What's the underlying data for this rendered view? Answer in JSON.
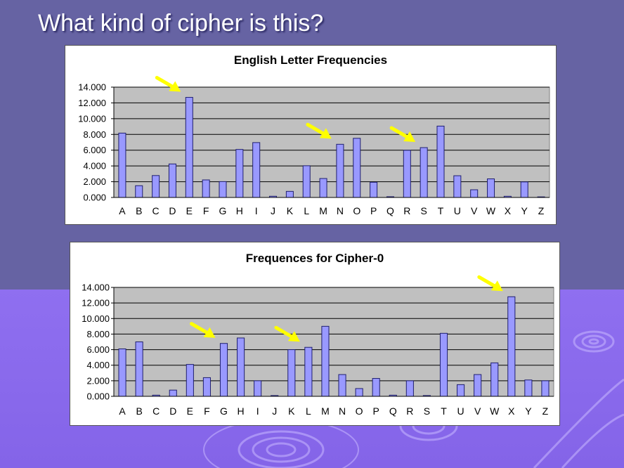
{
  "slide": {
    "title": "What kind of cipher is this?"
  },
  "colors": {
    "background_top": "#6663a3",
    "background_bottom": "#8f6ff0",
    "plot_area": "#c0c0c0",
    "bar_fill": "#9999ff",
    "bar_stroke": "#1f1f6e",
    "arrow": "#ffff00"
  },
  "chart_data": [
    {
      "type": "bar",
      "title": "English Letter Frequencies",
      "xlabel": "",
      "ylabel": "",
      "categories": [
        "A",
        "B",
        "C",
        "D",
        "E",
        "F",
        "G",
        "H",
        "I",
        "J",
        "K",
        "L",
        "M",
        "N",
        "O",
        "P",
        "Q",
        "R",
        "S",
        "T",
        "U",
        "V",
        "W",
        "X",
        "Y",
        "Z"
      ],
      "values": [
        8.167,
        1.492,
        2.782,
        4.253,
        12.702,
        2.228,
        2.015,
        6.094,
        6.966,
        0.153,
        0.772,
        4.025,
        2.406,
        6.749,
        7.507,
        1.929,
        0.095,
        5.987,
        6.327,
        9.056,
        2.758,
        0.978,
        2.36,
        0.15,
        1.974,
        0.074
      ],
      "ylim": [
        0,
        14
      ],
      "yticks": [
        "0.000",
        "2.000",
        "4.000",
        "6.000",
        "8.000",
        "10.000",
        "12.000",
        "14.000"
      ],
      "grid": true,
      "legend": "none",
      "highlighted_categories": [
        "E",
        "N",
        "S"
      ]
    },
    {
      "type": "bar",
      "title": "Frequences for Cipher-0",
      "xlabel": "",
      "ylabel": "",
      "categories": [
        "A",
        "B",
        "C",
        "D",
        "E",
        "F",
        "G",
        "H",
        "I",
        "J",
        "K",
        "L",
        "M",
        "N",
        "O",
        "P",
        "Q",
        "R",
        "S",
        "T",
        "U",
        "V",
        "W",
        "X",
        "Y",
        "Z"
      ],
      "values": [
        6.1,
        7.0,
        0.15,
        0.8,
        4.1,
        2.4,
        6.8,
        7.5,
        2.0,
        0.1,
        6.0,
        6.3,
        9.0,
        2.8,
        1.0,
        2.3,
        0.15,
        2.0,
        0.1,
        8.1,
        1.5,
        2.8,
        4.3,
        12.8,
        2.1,
        2.0
      ],
      "ylim": [
        0,
        14
      ],
      "yticks": [
        "0.000",
        "2.000",
        "4.000",
        "6.000",
        "8.000",
        "10.000",
        "12.000",
        "14.000"
      ],
      "grid": true,
      "legend": "none",
      "highlighted_categories": [
        "G",
        "L",
        "X"
      ]
    }
  ]
}
